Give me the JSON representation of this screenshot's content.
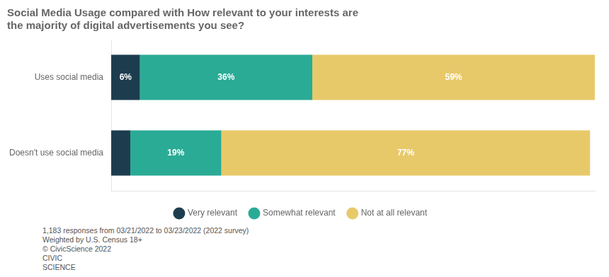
{
  "chart_data": {
    "type": "bar",
    "orientation": "horizontal",
    "stacked": true,
    "title": "Social Media Usage compared with How relevant to your interests are\nthe majority of digital advertisements you see?",
    "categories": [
      "Uses social media",
      "Doesn't use social media"
    ],
    "series": [
      {
        "name": "Very relevant",
        "color": "#1d3d4f",
        "values": [
          6,
          4
        ],
        "value_labels": [
          "6%",
          null
        ]
      },
      {
        "name": "Somewhat relevant",
        "color": "#2aab96",
        "values": [
          36,
          19
        ],
        "value_labels": [
          "36%",
          "19%"
        ]
      },
      {
        "name": "Not at all relevant",
        "color": "#e8c96a",
        "values": [
          59,
          77
        ],
        "value_labels": [
          "59%",
          "77%"
        ]
      }
    ],
    "xlim": [
      0,
      101
    ],
    "grid": false,
    "legend": "bottom",
    "data_labels": true,
    "tick_labels": "y",
    "annotations": [
      "1,183 responses from 03/21/2022 to 03/23/2022 (2022 survey)",
      "Weighted by U.S. Census 18+",
      "© CivicScience 2022",
      "CIVIC",
      "SCIENCE"
    ]
  }
}
